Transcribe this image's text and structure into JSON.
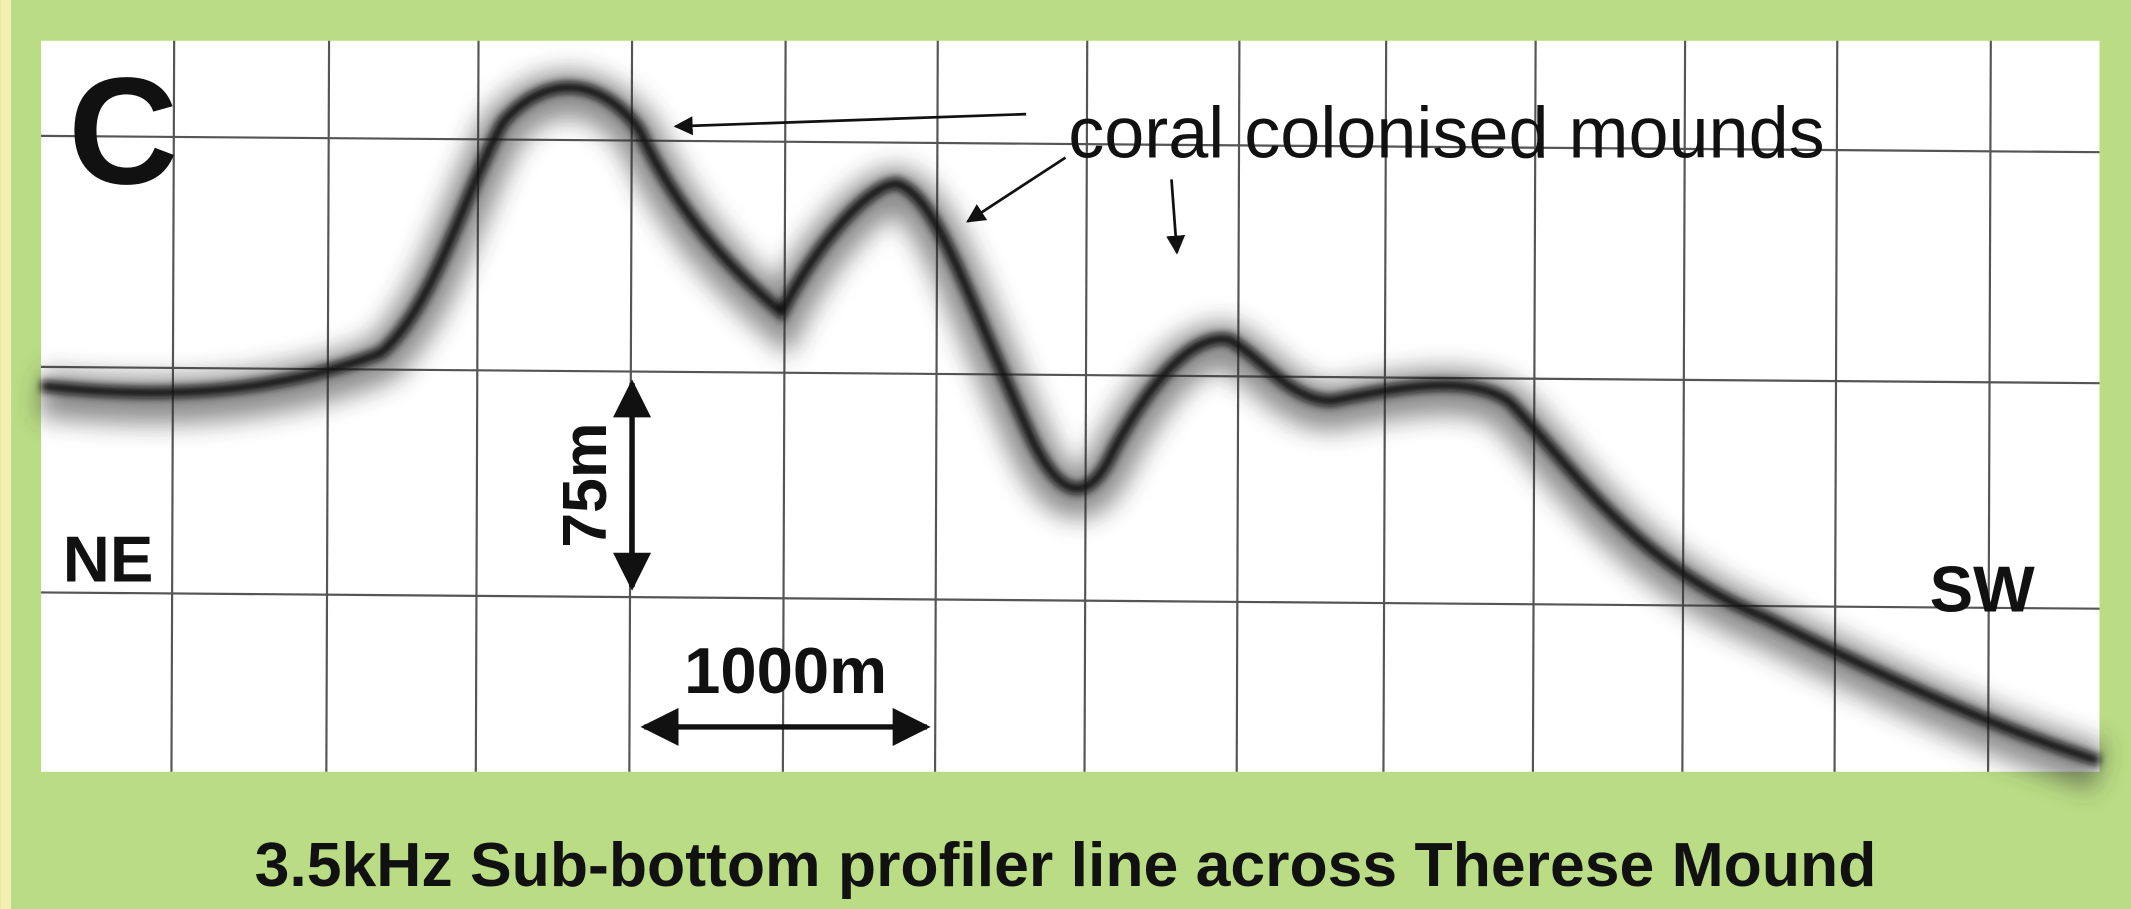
{
  "panel_label": "C",
  "annotation": "coral colonised mounds",
  "direction_left": "NE",
  "direction_right": "SW",
  "vertical_scale": "75m",
  "horizontal_scale": "1000m",
  "caption": "3.5kHz Sub-bottom profiler line across Therese Mound"
}
